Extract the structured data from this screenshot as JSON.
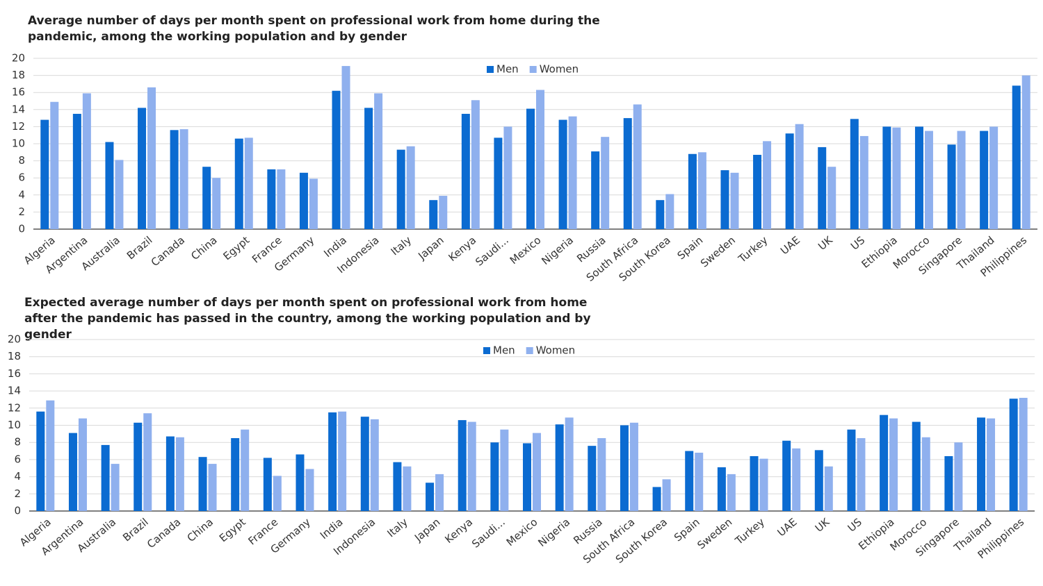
{
  "chart_data": [
    {
      "type": "bar",
      "title": "Average number of days per month spent on professional work from home during the pandemic, among the working population and by gender",
      "categories": [
        "Algeria",
        "Argentina",
        "Australia",
        "Brazil",
        "Canada",
        "China",
        "Egypt",
        "France",
        "Germany",
        "India",
        "Indonesia",
        "Italy",
        "Japan",
        "Kenya",
        "Saudi...",
        "Mexico",
        "Nigeria",
        "Russia",
        "South Africa",
        "South Korea",
        "Spain",
        "Sweden",
        "Turkey",
        "UAE",
        "UK",
        "US",
        "Ethiopia",
        "Morocco",
        "Singapore",
        "Thailand",
        "Philippines"
      ],
      "series": [
        {
          "name": "Men",
          "color": "#0b6bd1",
          "values": [
            12.8,
            13.5,
            10.2,
            14.2,
            11.6,
            7.3,
            10.6,
            7.0,
            6.6,
            16.2,
            14.2,
            9.3,
            3.4,
            13.5,
            10.7,
            14.1,
            12.8,
            9.1,
            13.0,
            3.4,
            8.8,
            6.9,
            8.7,
            11.2,
            9.6,
            12.9,
            12.0,
            12.0,
            9.9,
            11.5,
            16.8
          ]
        },
        {
          "name": "Women",
          "color": "#8fb0ee",
          "values": [
            14.9,
            15.9,
            8.1,
            16.6,
            11.7,
            6.0,
            10.7,
            7.0,
            5.9,
            19.1,
            15.9,
            9.7,
            3.9,
            15.1,
            12.0,
            16.3,
            13.2,
            10.8,
            14.6,
            4.1,
            9.0,
            6.6,
            10.3,
            12.3,
            7.3,
            10.9,
            11.9,
            11.5,
            11.5,
            12.0,
            18.0
          ]
        }
      ],
      "ylim": [
        0,
        20
      ],
      "yticks": [
        0,
        2,
        4,
        6,
        8,
        10,
        12,
        14,
        16,
        18,
        20
      ],
      "grid": true,
      "legend": "top"
    },
    {
      "type": "bar",
      "title": "Expected average number of days per month spent on professional work from home after the pandemic has passed in the country, among the working population and by gender",
      "categories": [
        "Algeria",
        "Argentina",
        "Australia",
        "Brazil",
        "Canada",
        "China",
        "Egypt",
        "France",
        "Germany",
        "India",
        "Indonesia",
        "Italy",
        "Japan",
        "Kenya",
        "Saudi...",
        "Mexico",
        "Nigeria",
        "Russia",
        "South Africa",
        "South Korea",
        "Spain",
        "Sweden",
        "Turkey",
        "UAE",
        "UK",
        "US",
        "Ethiopia",
        "Morocco",
        "Singapore",
        "Thailand",
        "Philippines"
      ],
      "series": [
        {
          "name": "Men",
          "color": "#0b6bd1",
          "values": [
            11.6,
            9.1,
            7.7,
            10.3,
            8.7,
            6.3,
            8.5,
            6.2,
            6.6,
            11.5,
            11.0,
            5.7,
            3.3,
            10.6,
            8.0,
            7.9,
            10.1,
            7.6,
            10.0,
            2.8,
            7.0,
            5.1,
            6.4,
            8.2,
            7.1,
            9.5,
            11.2,
            10.4,
            6.4,
            10.9,
            13.1
          ]
        },
        {
          "name": "Women",
          "color": "#8fb0ee",
          "values": [
            12.9,
            10.8,
            5.5,
            11.4,
            8.6,
            5.5,
            9.5,
            4.1,
            4.9,
            11.6,
            10.7,
            5.2,
            4.3,
            10.4,
            9.5,
            9.1,
            10.9,
            8.5,
            10.3,
            3.7,
            6.8,
            4.3,
            6.1,
            7.3,
            5.2,
            8.5,
            10.8,
            8.6,
            8.0,
            10.8,
            13.2
          ]
        }
      ],
      "ylim": [
        0,
        20
      ],
      "yticks": [
        0,
        2,
        4,
        6,
        8,
        10,
        12,
        14,
        16,
        18,
        20
      ],
      "grid": true,
      "legend": "top"
    }
  ]
}
